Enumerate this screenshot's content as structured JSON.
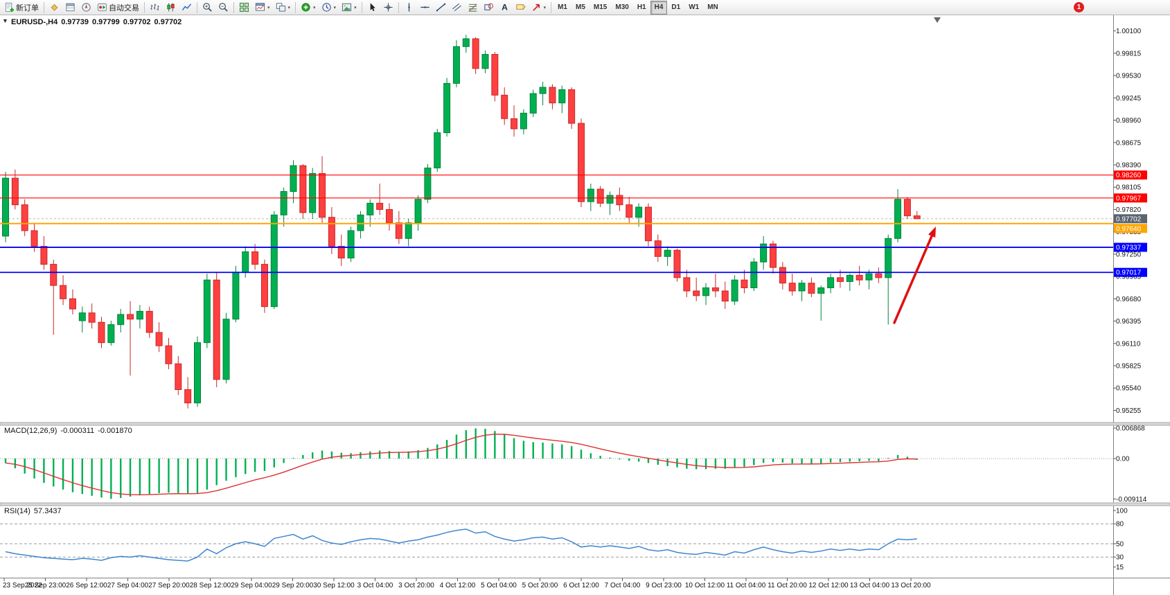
{
  "window": {
    "notification_count": "1"
  },
  "toolbar": {
    "items": [
      {
        "name": "new-order-button",
        "icon": "new-order",
        "label": "新订单"
      },
      {
        "sep": true
      },
      {
        "name": "market-watch-button",
        "icon": "market-watch"
      },
      {
        "name": "data-window-button",
        "icon": "data-window"
      },
      {
        "name": "navigator-button",
        "icon": "navigator"
      },
      {
        "name": "auto-trading-button",
        "icon": "auto-trading",
        "label": "自动交易"
      },
      {
        "sep": true
      },
      {
        "name": "bar-chart-button",
        "icon": "bar-chart"
      },
      {
        "name": "candle-chart-button",
        "icon": "candle-chart"
      },
      {
        "name": "line-chart-button",
        "icon": "line-chart"
      },
      {
        "sep": true
      },
      {
        "name": "zoom-in-button",
        "icon": "zoom-in"
      },
      {
        "name": "zoom-out-button",
        "icon": "zoom-out"
      },
      {
        "sep": true
      },
      {
        "name": "tile-windows-button",
        "icon": "tile-windows"
      },
      {
        "name": "new-chart-button",
        "icon": "chart-window",
        "dd": true
      },
      {
        "name": "chart-profile-button",
        "icon": "chart-profile",
        "dd": true
      },
      {
        "sep": true
      },
      {
        "name": "indicators-button",
        "icon": "indicators",
        "dd": true
      },
      {
        "name": "periods-button",
        "icon": "periods",
        "dd": true
      },
      {
        "name": "templates-button",
        "icon": "templates",
        "dd": true
      },
      {
        "sep": true
      },
      {
        "name": "cursor-button",
        "icon": "cursor"
      },
      {
        "name": "crosshair-button",
        "icon": "crosshair"
      },
      {
        "sep": true
      },
      {
        "name": "vertical-line-button",
        "icon": "vertical-line"
      },
      {
        "name": "horizontal-line-button",
        "icon": "horizontal-line"
      },
      {
        "name": "trendline-button",
        "icon": "trendline"
      },
      {
        "name": "equidistant-channel-button",
        "icon": "channel"
      },
      {
        "name": "fibonacci-button",
        "icon": "fibonacci"
      },
      {
        "name": "shapes-button",
        "icon": "shapes"
      },
      {
        "name": "text-button",
        "icon": "text"
      },
      {
        "name": "text-label-button",
        "icon": "text-label"
      },
      {
        "name": "arrows-button",
        "icon": "arrows",
        "dd": true
      },
      {
        "sep": true
      }
    ],
    "timeframes": [
      "M1",
      "M5",
      "M15",
      "M30",
      "H1",
      "H4",
      "D1",
      "W1",
      "MN"
    ],
    "active_timeframe": "H4"
  },
  "chart": {
    "title": "EURUSD-,H4",
    "ohlc": {
      "open": "0.97739",
      "high": "0.97799",
      "low": "0.97702",
      "close": "0.97702"
    },
    "bid": {
      "price": 0.97702,
      "tag": "0.97702"
    },
    "horizontal_lines": [
      {
        "price": 0.9826,
        "color": "#ff0000",
        "width": 1.2,
        "tag": "0.98260"
      },
      {
        "price": 0.97967,
        "color": "#ff0000",
        "width": 1.2,
        "tag": "0.97967"
      },
      {
        "price": 0.9764,
        "color": "#ffa500",
        "width": 2,
        "tag": "0.97640",
        "tag_offset": 7
      },
      {
        "price": 0.97337,
        "color": "#0000ff",
        "width": 1.8,
        "tag": "0.97337"
      },
      {
        "price": 0.97017,
        "color": "#0000ff",
        "width": 1.8,
        "tag": "0.97017"
      }
    ]
  },
  "macd_panel": {
    "label": "MACD(12,26,9)",
    "value_main": "-0.000311",
    "value_signal": "-0.001870",
    "scale": [
      "0.006868",
      "0.00",
      "-0.009114"
    ]
  },
  "rsi_panel": {
    "label": "RSI(14)",
    "value": "57.3437",
    "scale": [
      "100",
      "80",
      "50",
      "30",
      "15"
    ],
    "levels": [
      80,
      50,
      30
    ]
  },
  "chart_data": {
    "type": "candlestick",
    "symbol": "EURUSD-",
    "period": "H4",
    "ylim": [
      0.951,
      1.003
    ],
    "y_axis_ticks": [
      "1.00100",
      "0.99815",
      "0.99530",
      "0.99245",
      "0.98960",
      "0.98675",
      "0.98390",
      "0.98105",
      "0.97820",
      "0.97535",
      "0.97250",
      "0.96965",
      "0.96680",
      "0.96395",
      "0.96110",
      "0.95825",
      "0.95540",
      "0.95255"
    ],
    "x_axis_labels": [
      "23 Sep 2022",
      "25 Sep 23:00",
      "26 Sep 12:00",
      "27 Sep 04:00",
      "27 Sep 20:00",
      "28 Sep 12:00",
      "29 Sep 04:00",
      "29 Sep 20:00",
      "30 Sep 12:00",
      "3 Oct 04:00",
      "3 Oct 20:00",
      "4 Oct 12:00",
      "5 Oct 04:00",
      "5 Oct 20:00",
      "6 Oct 12:00",
      "7 Oct 04:00",
      "9 Oct 23:00",
      "10 Oct 12:00",
      "11 Oct 04:00",
      "11 Oct 20:00",
      "12 Oct 12:00",
      "13 Oct 04:00",
      "13 Oct 20:00"
    ],
    "candles": [
      [
        0.9748,
        0.983,
        0.974,
        0.9822
      ],
      [
        0.9822,
        0.9833,
        0.9782,
        0.9788
      ],
      [
        0.9788,
        0.9795,
        0.9748,
        0.9755
      ],
      [
        0.9755,
        0.9765,
        0.9728,
        0.9735
      ],
      [
        0.9735,
        0.9748,
        0.9705,
        0.9712
      ],
      [
        0.9712,
        0.9718,
        0.9622,
        0.9685
      ],
      [
        0.9685,
        0.9698,
        0.966,
        0.9668
      ],
      [
        0.9668,
        0.968,
        0.9648,
        0.9655
      ],
      [
        0.964,
        0.9658,
        0.9625,
        0.965
      ],
      [
        0.965,
        0.9662,
        0.963,
        0.9638
      ],
      [
        0.9638,
        0.9645,
        0.9605,
        0.9612
      ],
      [
        0.9612,
        0.964,
        0.9608,
        0.9635
      ],
      [
        0.9635,
        0.9655,
        0.9625,
        0.9648
      ],
      [
        0.9648,
        0.9665,
        0.957,
        0.9642
      ],
      [
        0.9642,
        0.966,
        0.963,
        0.9652
      ],
      [
        0.9652,
        0.9658,
        0.9618,
        0.9625
      ],
      [
        0.9625,
        0.9638,
        0.96,
        0.9608
      ],
      [
        0.9608,
        0.9618,
        0.9578,
        0.9585
      ],
      [
        0.9585,
        0.9595,
        0.9545,
        0.9552
      ],
      [
        0.9552,
        0.9568,
        0.9528,
        0.9535
      ],
      [
        0.9535,
        0.962,
        0.953,
        0.9612
      ],
      [
        0.9612,
        0.97,
        0.9605,
        0.9692
      ],
      [
        0.9692,
        0.9702,
        0.9555,
        0.9565
      ],
      [
        0.9565,
        0.965,
        0.956,
        0.9642
      ],
      [
        0.9642,
        0.971,
        0.9638,
        0.9702
      ],
      [
        0.9702,
        0.9735,
        0.9695,
        0.9728
      ],
      [
        0.9728,
        0.9738,
        0.9705,
        0.9712
      ],
      [
        0.9712,
        0.9718,
        0.965,
        0.9658
      ],
      [
        0.9658,
        0.978,
        0.9655,
        0.9775
      ],
      [
        0.9775,
        0.981,
        0.976,
        0.9805
      ],
      [
        0.9805,
        0.9845,
        0.979,
        0.9838
      ],
      [
        0.9838,
        0.984,
        0.977,
        0.9778
      ],
      [
        0.9778,
        0.9835,
        0.977,
        0.9828
      ],
      [
        0.9828,
        0.985,
        0.9765,
        0.9772
      ],
      [
        0.9772,
        0.9785,
        0.9725,
        0.9735
      ],
      [
        0.9735,
        0.975,
        0.971,
        0.972
      ],
      [
        0.972,
        0.976,
        0.9715,
        0.9755
      ],
      [
        0.9755,
        0.978,
        0.9745,
        0.9775
      ],
      [
        0.9775,
        0.9795,
        0.976,
        0.979
      ],
      [
        0.979,
        0.9815,
        0.9775,
        0.9782
      ],
      [
        0.9782,
        0.979,
        0.9755,
        0.9765
      ],
      [
        0.9765,
        0.978,
        0.9738,
        0.9745
      ],
      [
        0.9745,
        0.977,
        0.9735,
        0.9765
      ],
      [
        0.9765,
        0.98,
        0.9755,
        0.9795
      ],
      [
        0.9795,
        0.984,
        0.979,
        0.9835
      ],
      [
        0.9835,
        0.9885,
        0.983,
        0.988
      ],
      [
        0.988,
        0.995,
        0.9875,
        0.9943
      ],
      [
        0.9943,
        0.9998,
        0.9938,
        0.999
      ],
      [
        0.999,
        1.0005,
        0.9982,
        1.0
      ],
      [
        1.0,
        1.0002,
        0.9955,
        0.9962
      ],
      [
        0.9962,
        0.9985,
        0.9956,
        0.998
      ],
      [
        0.998,
        0.9983,
        0.992,
        0.9928
      ],
      [
        0.9928,
        0.9938,
        0.989,
        0.9898
      ],
      [
        0.9898,
        0.9915,
        0.9875,
        0.9885
      ],
      [
        0.9885,
        0.991,
        0.9878,
        0.9905
      ],
      [
        0.9905,
        0.9935,
        0.99,
        0.993
      ],
      [
        0.993,
        0.9945,
        0.9915,
        0.9938
      ],
      [
        0.9938,
        0.9942,
        0.991,
        0.9918
      ],
      [
        0.9918,
        0.994,
        0.9905,
        0.9935
      ],
      [
        0.9935,
        0.9938,
        0.9885,
        0.9892
      ],
      [
        0.9892,
        0.9898,
        0.9785,
        0.9792
      ],
      [
        0.9792,
        0.9815,
        0.978,
        0.9808
      ],
      [
        0.9808,
        0.9812,
        0.9785,
        0.979
      ],
      [
        0.979,
        0.9805,
        0.9775,
        0.98
      ],
      [
        0.98,
        0.981,
        0.978,
        0.9788
      ],
      [
        0.9788,
        0.9798,
        0.9765,
        0.9772
      ],
      [
        0.9772,
        0.979,
        0.976,
        0.9785
      ],
      [
        0.9785,
        0.979,
        0.9735,
        0.9742
      ],
      [
        0.9742,
        0.975,
        0.9715,
        0.9722
      ],
      [
        0.9722,
        0.9735,
        0.971,
        0.973
      ],
      [
        0.973,
        0.9732,
        0.969,
        0.9695
      ],
      [
        0.9695,
        0.9705,
        0.967,
        0.9678
      ],
      [
        0.9678,
        0.9695,
        0.9665,
        0.9672
      ],
      [
        0.9672,
        0.9688,
        0.966,
        0.9682
      ],
      [
        0.9682,
        0.97,
        0.967,
        0.9678
      ],
      [
        0.9678,
        0.969,
        0.9655,
        0.9665
      ],
      [
        0.9665,
        0.9698,
        0.966,
        0.9692
      ],
      [
        0.9692,
        0.9705,
        0.9675,
        0.9682
      ],
      [
        0.9682,
        0.972,
        0.9678,
        0.9715
      ],
      [
        0.9715,
        0.9748,
        0.9705,
        0.9738
      ],
      [
        0.9738,
        0.9742,
        0.97,
        0.9708
      ],
      [
        0.9708,
        0.9715,
        0.968,
        0.9688
      ],
      [
        0.9688,
        0.97,
        0.9672,
        0.9678
      ],
      [
        0.9678,
        0.9692,
        0.9665,
        0.9688
      ],
      [
        0.9688,
        0.9695,
        0.967,
        0.9675
      ],
      [
        0.9675,
        0.9685,
        0.964,
        0.9682
      ],
      [
        0.9682,
        0.97,
        0.9675,
        0.9695
      ],
      [
        0.9695,
        0.9705,
        0.9682,
        0.969
      ],
      [
        0.969,
        0.97,
        0.9678,
        0.9698
      ],
      [
        0.9698,
        0.971,
        0.9685,
        0.9692
      ],
      [
        0.9692,
        0.9705,
        0.968,
        0.97
      ],
      [
        0.97,
        0.9708,
        0.9688,
        0.9695
      ],
      [
        0.9695,
        0.975,
        0.9635,
        0.9745
      ],
      [
        0.9745,
        0.9808,
        0.974,
        0.9795
      ],
      [
        0.9795,
        0.9798,
        0.977,
        0.97739
      ],
      [
        0.97739,
        0.97799,
        0.97702,
        0.97702
      ]
    ],
    "indicators": [
      {
        "name": "MACD",
        "params": [
          12,
          26,
          9
        ],
        "histogram": [
          -0.001,
          -0.0022,
          -0.0034,
          -0.0045,
          -0.0055,
          -0.0063,
          -0.007,
          -0.0076,
          -0.008,
          -0.0084,
          -0.0088,
          -0.0091,
          -0.0089,
          -0.0086,
          -0.0083,
          -0.008,
          -0.0078,
          -0.0077,
          -0.0078,
          -0.008,
          -0.0078,
          -0.007,
          -0.006,
          -0.005,
          -0.0042,
          -0.0035,
          -0.003,
          -0.0028,
          -0.002,
          -0.001,
          0.0,
          0.0008,
          0.0014,
          0.0018,
          0.0016,
          0.0013,
          0.0012,
          0.0014,
          0.0016,
          0.0018,
          0.0017,
          0.0015,
          0.0016,
          0.0019,
          0.0024,
          0.0032,
          0.0042,
          0.0054,
          0.0064,
          0.0068,
          0.0067,
          0.0062,
          0.0054,
          0.0046,
          0.004,
          0.0037,
          0.0036,
          0.0034,
          0.0032,
          0.0028,
          0.002,
          0.0012,
          0.0006,
          0.0002,
          -0.0002,
          -0.0005,
          -0.0007,
          -0.001,
          -0.0014,
          -0.0017,
          -0.002,
          -0.0023,
          -0.0024,
          -0.0024,
          -0.0023,
          -0.0023,
          -0.0021,
          -0.0019,
          -0.0015,
          -0.001,
          -0.0008,
          -0.0009,
          -0.0011,
          -0.0012,
          -0.0012,
          -0.0011,
          -0.0009,
          -0.0008,
          -0.0007,
          -0.0006,
          -0.0005,
          -0.0006,
          0.0,
          0.0008,
          0.0004,
          -0.0003
        ]
      },
      {
        "name": "RSI",
        "params": [
          14
        ],
        "values": [
          38,
          35,
          33,
          31,
          29,
          28,
          27,
          26,
          28,
          27,
          25,
          29,
          31,
          30,
          32,
          30,
          28,
          26,
          25,
          24,
          30,
          42,
          35,
          44,
          50,
          53,
          50,
          46,
          58,
          61,
          64,
          57,
          62,
          55,
          51,
          49,
          53,
          56,
          58,
          57,
          54,
          51,
          54,
          56,
          60,
          63,
          67,
          70,
          72,
          66,
          68,
          61,
          57,
          54,
          56,
          59,
          60,
          57,
          59,
          53,
          45,
          47,
          45,
          47,
          45,
          43,
          46,
          41,
          39,
          41,
          37,
          35,
          34,
          37,
          35,
          33,
          38,
          36,
          41,
          45,
          41,
          38,
          36,
          39,
          37,
          39,
          42,
          40,
          42,
          40,
          42,
          41,
          50,
          57,
          56,
          57.34
        ]
      }
    ]
  },
  "colors": {
    "candle_up": "#00b050",
    "candle_up_border": "#00813a",
    "candle_down": "#ff4040",
    "candle_down_border": "#c62828",
    "macd_histogram": "#00b050",
    "macd_signal": "#e03030",
    "rsi_line": "#3c86d0",
    "line_red": "#ff0000",
    "line_blue": "#0000ff",
    "line_orange": "#ffa500",
    "annotation_arrow": "#e01010"
  }
}
